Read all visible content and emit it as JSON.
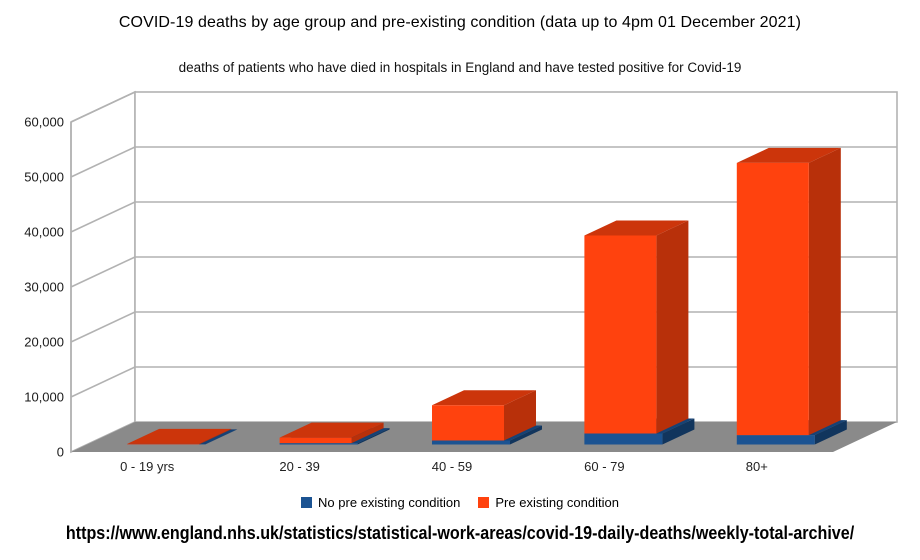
{
  "page": {
    "title": "COVID-19 deaths by age group and pre-existing condition (data up to 4pm 01 December 2021)",
    "subtitle": "deaths of patients who have died in hospitals in England and have tested positive for Covid-19",
    "source_url": "https://www.england.nhs.uk/statistics/statistical-work-areas/covid-19-daily-deaths/weekly-total-archive/"
  },
  "chart_data": {
    "type": "bar",
    "projection": "3d",
    "stacked": true,
    "title": "COVID-19 deaths by age group and pre-existing condition (data up to 4pm 01 December 2021)",
    "subtitle": "deaths of patients who have died in hospitals in England and have tested positive for Covid-19",
    "categories": [
      "0 - 19 yrs",
      "20 - 39",
      "40 - 59",
      "60 - 79",
      "80+"
    ],
    "series": [
      {
        "name": "No pre existing condition",
        "color": "#1B5392",
        "values": [
          25,
          250,
          730,
          2000,
          1700
        ]
      },
      {
        "name": "Pre existing condition",
        "color": "#FF420E",
        "values": [
          100,
          1000,
          6400,
          36000,
          49500
        ]
      }
    ],
    "xlabel": "",
    "ylabel": "",
    "ylim": [
      0,
      60000
    ],
    "ytick_interval": 10000,
    "ytick_labels": [
      "0",
      "10,000",
      "20,000",
      "30,000",
      "40,000",
      "50,000",
      "60,000"
    ],
    "grid": true,
    "legend_position": "bottom",
    "colors": {
      "wall": "#FFFFFF",
      "floor": "#8A8A8A",
      "gridline": "#B2B2B2",
      "axis_text": "#1A1A1A"
    }
  }
}
